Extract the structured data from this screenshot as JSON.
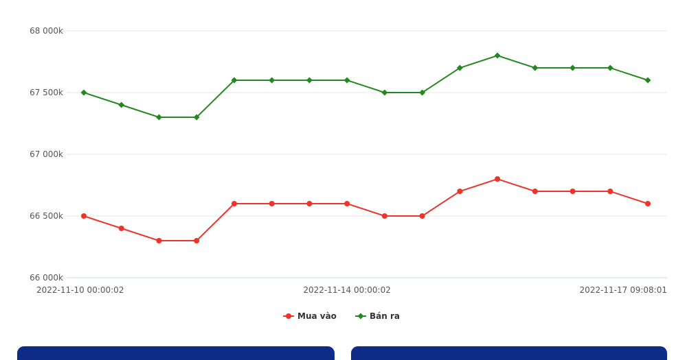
{
  "chart_data": {
    "type": "line",
    "ylim": [
      66000,
      68000
    ],
    "y_ticks": [
      "66 000k",
      "66 500k",
      "67 000k",
      "67 500k",
      "68 000k"
    ],
    "y_tick_values": [
      66000,
      66500,
      67000,
      67500,
      68000
    ],
    "x_tick_labels": [
      {
        "index": 0,
        "label": "2022-11-10 00:00:02"
      },
      {
        "index": 7,
        "label": "2022-11-14 00:00:02"
      },
      {
        "index": 15,
        "label": "2022-11-17 09:08:01"
      }
    ],
    "grid": true,
    "legend": "bottom-center",
    "series": [
      {
        "name": "Mua vào",
        "color": "#f0322a",
        "marker": "circle",
        "values": [
          66500,
          66400,
          66300,
          66300,
          66600,
          66600,
          66600,
          66600,
          66500,
          66500,
          66700,
          66800,
          66700,
          66700,
          66700,
          66600
        ]
      },
      {
        "name": "Bán ra",
        "color": "#23891f",
        "marker": "diamond",
        "values": [
          67500,
          67400,
          67300,
          67300,
          67600,
          67600,
          67600,
          67600,
          67500,
          67500,
          67700,
          67800,
          67700,
          67700,
          67700,
          67600
        ]
      }
    ]
  }
}
